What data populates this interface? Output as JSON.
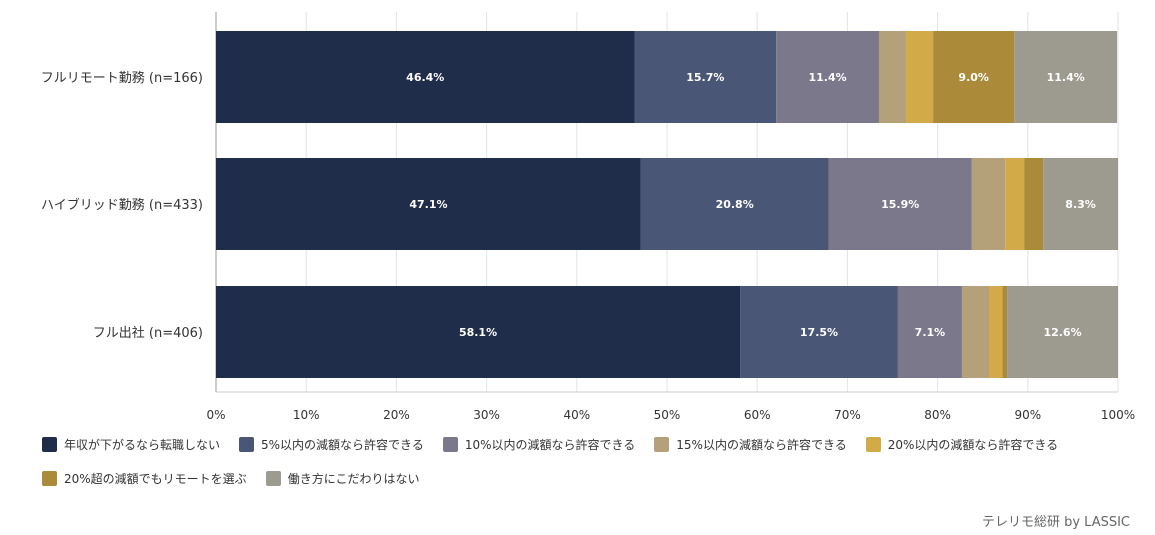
{
  "chart_data": {
    "type": "bar",
    "orientation": "horizontal",
    "stacked": true,
    "categories": [
      "フルリモート勤務 (n=166)",
      "ハイブリッド勤務 (n=433)",
      "フル出社 (n=406)"
    ],
    "series": [
      {
        "name": "年収が下がるなら転職しない",
        "color": "#1f2d4a",
        "values": [
          46.4,
          47.1,
          58.1
        ],
        "labels": [
          "46.4%",
          "47.1%",
          "58.1%"
        ]
      },
      {
        "name": "5%以内の減額なら許容できる",
        "color": "#4a5675",
        "values": [
          15.7,
          20.8,
          17.5
        ],
        "labels": [
          "15.7%",
          "20.8%",
          "17.5%"
        ]
      },
      {
        "name": "10%以内の減額なら許容できる",
        "color": "#7a788a",
        "values": [
          11.4,
          15.9,
          7.1
        ],
        "labels": [
          "11.4%",
          "15.9%",
          "7.1%"
        ]
      },
      {
        "name": "15%以内の減額なら許容できる",
        "color": "#b4a17a",
        "values": [
          3.0,
          3.7,
          3.0
        ],
        "labels": [
          "",
          "",
          ""
        ]
      },
      {
        "name": "20%以内の減額なら許容できる",
        "color": "#d2ab48",
        "values": [
          3.0,
          2.1,
          1.5
        ],
        "labels": [
          "",
          "",
          ""
        ]
      },
      {
        "name": "20%超の減額でもリモートを選ぶ",
        "color": "#ab8a3a",
        "values": [
          9.0,
          2.1,
          0.5
        ],
        "labels": [
          "9.0%",
          "",
          ""
        ]
      },
      {
        "name": "働き方にこだわりはない",
        "color": "#9d9b90",
        "values": [
          11.4,
          8.3,
          12.6
        ],
        "labels": [
          "11.4%",
          "8.3%",
          "12.6%"
        ]
      }
    ],
    "xlim": [
      0,
      100
    ],
    "xticks": [
      "0%",
      "10%",
      "20%",
      "30%",
      "40%",
      "50%",
      "60%",
      "70%",
      "80%",
      "90%",
      "100%"
    ],
    "grid": true,
    "legend_position": "bottom-left"
  },
  "credit": "テレリモ総研 by LASSIC"
}
